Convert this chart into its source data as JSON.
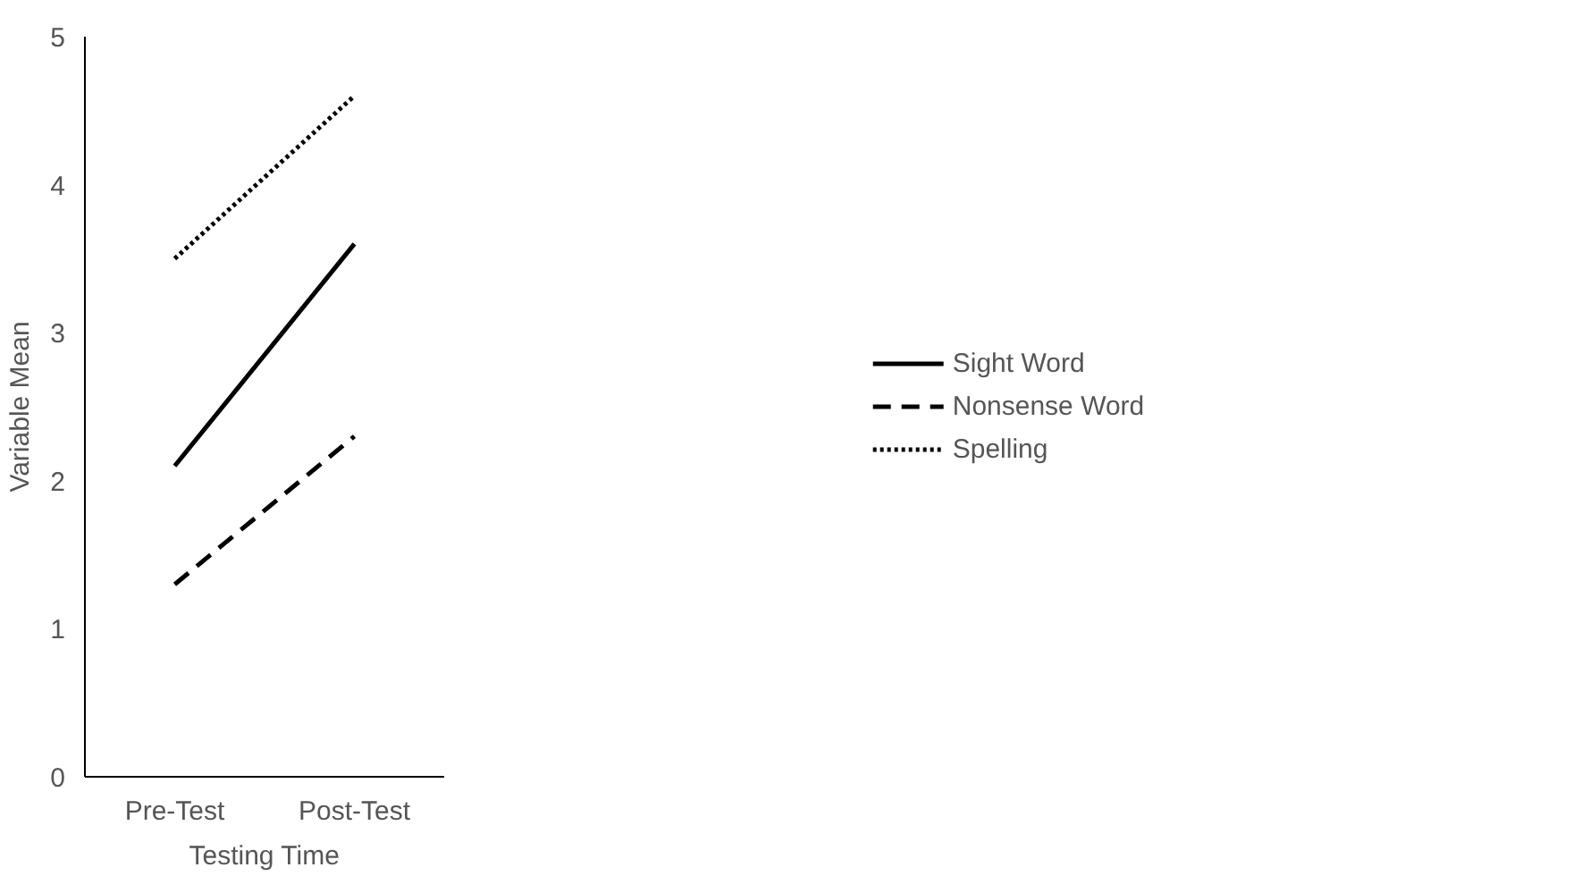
{
  "chart_data": {
    "type": "line",
    "xlabel": "Testing Time",
    "ylabel": "Variable Mean",
    "categories": [
      "Pre-Test",
      "Post-Test"
    ],
    "series": [
      {
        "name": "Sight Word",
        "color": "#000000",
        "line_style": "solid",
        "values": [
          2.1,
          3.6
        ]
      },
      {
        "name": "Nonsense Word",
        "color": "#000000",
        "line_style": "dashed",
        "values": [
          1.3,
          2.3
        ]
      },
      {
        "name": "Spelling",
        "color": "#000000",
        "line_style": "dotted",
        "values": [
          3.5,
          4.6
        ]
      }
    ],
    "ylim": [
      0,
      5
    ],
    "yticks": [
      0,
      1,
      2,
      3,
      4,
      5
    ],
    "grid": false,
    "legend": "right",
    "marker": "none"
  }
}
